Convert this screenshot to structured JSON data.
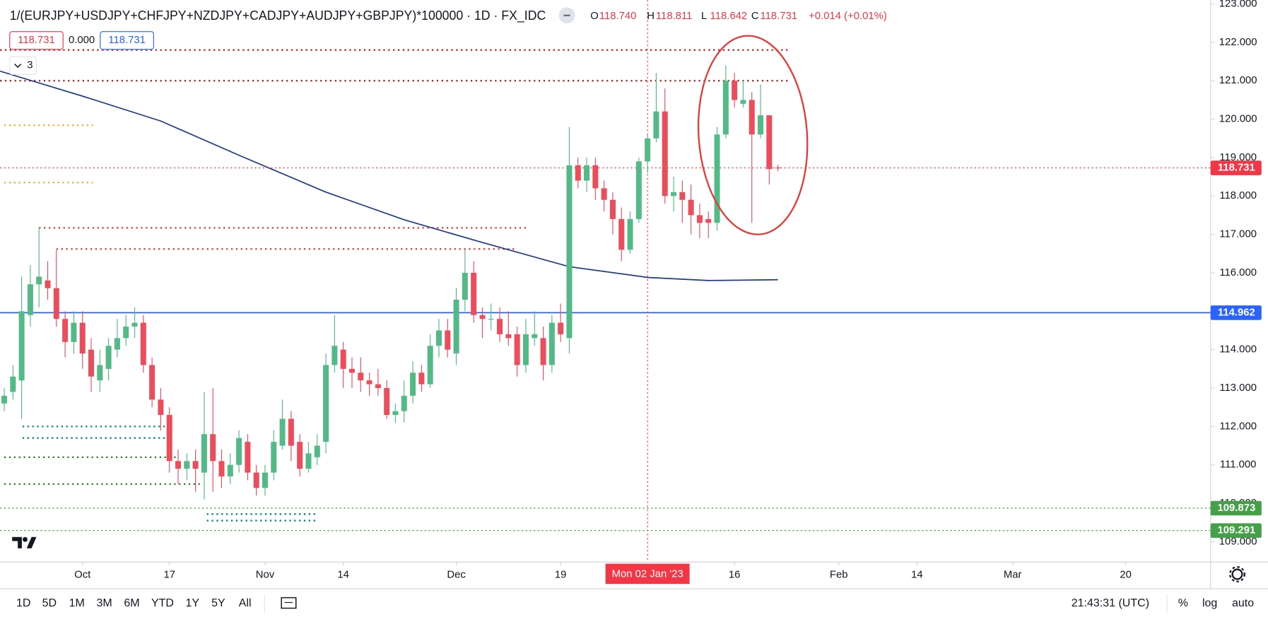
{
  "header": {
    "chips": [
      "118.731",
      "0.000",
      "118.731"
    ],
    "collapse": "3",
    "ohlc": [
      {
        "key": "O",
        "value": "118.740"
      },
      {
        "key": "H",
        "value": "118.811"
      },
      {
        "key": "L",
        "value": "118.642"
      },
      {
        "key": "C",
        "value": "118.731"
      }
    ],
    "change": "+0.014 (+0.01%)"
  },
  "chart_data": {
    "type": "candlestick",
    "title": "1/(EURJPY+USDJPY+CHFJPY+NZDJPY+CADJPY+AUDJPY+GBPJPY)*100000 · 1D · FX_IDC",
    "colors": {
      "up": "#53b987",
      "down": "#eb4d5c"
    },
    "xlim": [
      -0.49,
      138.77
    ],
    "ylim": [
      108.47,
      123.1
    ],
    "xticks": [
      {
        "value": 9,
        "label": "Oct"
      },
      {
        "value": 19,
        "label": "17"
      },
      {
        "value": 30,
        "label": "Nov"
      },
      {
        "value": 39,
        "label": "14"
      },
      {
        "value": 52,
        "label": "Dec"
      },
      {
        "value": 64,
        "label": "19"
      },
      {
        "value": 84,
        "label": "16"
      },
      {
        "value": 96,
        "label": "Feb"
      },
      {
        "value": 105,
        "label": "14"
      },
      {
        "value": 116,
        "label": "Mar"
      },
      {
        "value": 129,
        "label": "20"
      }
    ],
    "yticks": [
      {
        "value": 109,
        "label": "109.000"
      },
      {
        "value": 110,
        "label": "110.000"
      },
      {
        "value": 111,
        "label": "111.000"
      },
      {
        "value": 112,
        "label": "112.000"
      },
      {
        "value": 113,
        "label": "113.000"
      },
      {
        "value": 114,
        "label": "114.000"
      },
      {
        "value": 115,
        "label": "115.000"
      },
      {
        "value": 116,
        "label": "116.000"
      },
      {
        "value": 117,
        "label": "117.000"
      },
      {
        "value": 118,
        "label": "118.000"
      },
      {
        "value": 119,
        "label": "119.000"
      },
      {
        "value": 120,
        "label": "120.000"
      },
      {
        "value": 121,
        "label": "121.000"
      },
      {
        "value": 122,
        "label": "122.000"
      },
      {
        "value": 123,
        "label": "123.000"
      }
    ],
    "x": [
      0,
      1,
      2,
      3,
      4,
      5,
      6,
      7,
      8,
      9,
      10,
      11,
      12,
      13,
      14,
      15,
      16,
      17,
      18,
      19,
      20,
      21,
      22,
      23,
      24,
      25,
      26,
      27,
      28,
      29,
      30,
      31,
      32,
      33,
      34,
      35,
      36,
      37,
      38,
      39,
      40,
      41,
      42,
      43,
      44,
      45,
      46,
      47,
      48,
      49,
      50,
      51,
      52,
      53,
      54,
      55,
      56,
      57,
      58,
      59,
      60,
      61,
      62,
      63,
      64,
      65,
      66,
      67,
      68,
      69,
      70,
      71,
      72,
      73,
      74,
      75,
      76,
      77,
      78,
      79,
      80,
      81,
      82,
      83,
      84,
      85,
      86,
      87,
      88,
      89
    ],
    "open": [
      112.6,
      112.9,
      113.2,
      114.9,
      115.7,
      115.8,
      115.6,
      114.8,
      114.2,
      114.7,
      114.0,
      113.2,
      113.5,
      114.0,
      114.3,
      114.6,
      114.7,
      113.6,
      112.7,
      112.3,
      111.1,
      110.9,
      111.1,
      110.8,
      111.8,
      111.1,
      110.7,
      111.0,
      111.6,
      110.8,
      110.4,
      110.8,
      111.5,
      112.2,
      111.6,
      110.9,
      111.2,
      111.6,
      113.6,
      114.0,
      113.5,
      113.4,
      113.2,
      113.1,
      113.0,
      112.3,
      112.4,
      112.8,
      113.4,
      113.1,
      114.1,
      114.5,
      113.9,
      115.3,
      116.0,
      114.9,
      114.8,
      114.8,
      114.4,
      114.4,
      113.6,
      114.3,
      114.3,
      113.6,
      114.7,
      114.3,
      118.8,
      118.4,
      118.8,
      118.2,
      117.9,
      117.4,
      116.6,
      117.4,
      118.9,
      119.5,
      120.2,
      118.0,
      118.1,
      117.9,
      117.5,
      117.4,
      117.3,
      119.6,
      121.0,
      120.4,
      120.5,
      119.6,
      120.1,
      118.74
    ],
    "high": [
      113.0,
      113.6,
      115.9,
      116.2,
      117.2,
      116.3,
      116.6,
      115.0,
      115.0,
      115.0,
      114.3,
      114.0,
      114.3,
      114.8,
      114.9,
      115.1,
      114.9,
      113.8,
      113.0,
      112.5,
      111.4,
      111.3,
      111.4,
      112.9,
      113.0,
      111.4,
      111.3,
      111.9,
      111.8,
      111.0,
      111.0,
      111.9,
      112.7,
      112.4,
      111.8,
      111.6,
      111.8,
      113.9,
      114.9,
      114.2,
      113.8,
      113.8,
      113.4,
      113.5,
      113.2,
      112.6,
      113.2,
      113.7,
      113.6,
      114.4,
      114.8,
      114.8,
      115.6,
      116.6,
      116.3,
      115.1,
      115.2,
      115.1,
      115.0,
      114.6,
      114.8,
      115.0,
      114.6,
      114.9,
      115.2,
      119.8,
      119.0,
      119.0,
      119.0,
      118.4,
      118.1,
      117.7,
      117.6,
      119.0,
      119.6,
      121.2,
      120.8,
      118.5,
      118.4,
      118.3,
      117.8,
      117.6,
      119.8,
      121.4,
      121.2,
      121.0,
      120.7,
      120.9,
      120.1,
      118.811
    ],
    "low": [
      112.4,
      112.7,
      112.2,
      114.6,
      115.1,
      115.3,
      114.6,
      113.8,
      113.9,
      113.5,
      112.9,
      112.9,
      113.2,
      113.8,
      114.1,
      114.3,
      113.4,
      112.5,
      111.9,
      110.8,
      110.5,
      110.6,
      110.3,
      110.1,
      110.3,
      110.4,
      110.5,
      110.8,
      110.6,
      110.2,
      110.2,
      110.6,
      111.4,
      111.1,
      110.7,
      110.8,
      111.0,
      111.3,
      113.4,
      113.0,
      113.0,
      112.9,
      112.8,
      112.8,
      112.2,
      112.1,
      112.1,
      112.6,
      112.9,
      113.0,
      113.8,
      113.8,
      113.6,
      115.0,
      114.7,
      114.3,
      114.5,
      114.2,
      114.1,
      113.3,
      113.4,
      114.1,
      113.2,
      113.4,
      114.2,
      113.9,
      118.2,
      118.1,
      117.9,
      117.6,
      117.0,
      116.3,
      116.5,
      117.3,
      118.6,
      119.4,
      117.8,
      117.6,
      117.3,
      117.0,
      116.9,
      116.9,
      117.1,
      119.5,
      120.3,
      120.3,
      117.3,
      119.5,
      118.3,
      118.642
    ],
    "close": [
      112.8,
      113.3,
      115.0,
      115.7,
      115.9,
      115.6,
      114.8,
      114.2,
      114.7,
      113.9,
      113.3,
      113.6,
      114.1,
      114.3,
      114.6,
      114.7,
      113.6,
      112.7,
      112.3,
      111.1,
      110.9,
      111.1,
      110.9,
      111.8,
      111.1,
      110.7,
      111.0,
      111.7,
      110.8,
      110.4,
      110.8,
      111.6,
      112.2,
      111.5,
      110.9,
      111.3,
      111.5,
      113.6,
      114.1,
      113.5,
      113.4,
      113.2,
      113.1,
      113.0,
      112.3,
      112.4,
      112.8,
      113.4,
      113.1,
      114.1,
      114.5,
      114.0,
      115.3,
      116.0,
      114.9,
      114.8,
      114.8,
      114.4,
      114.3,
      113.6,
      114.4,
      114.4,
      113.6,
      114.7,
      114.4,
      118.8,
      118.4,
      118.8,
      118.2,
      117.9,
      117.4,
      116.6,
      117.4,
      118.9,
      119.5,
      120.2,
      118.0,
      118.1,
      117.9,
      117.5,
      117.3,
      117.3,
      119.6,
      121.0,
      120.5,
      120.5,
      119.6,
      120.1,
      118.7,
      118.731
    ],
    "ma": {
      "color": "#1e3a8a",
      "x": [
        -0.49,
        9,
        18,
        27,
        37,
        46,
        55,
        65,
        74,
        81,
        89
      ],
      "values": [
        121.25,
        120.6,
        119.95,
        119.06,
        118.1,
        117.38,
        116.79,
        116.16,
        115.88,
        115.8,
        115.82
      ]
    },
    "price_lines": [
      {
        "value": 118.731,
        "color": "#f23645",
        "style": "dotted"
      },
      {
        "value": 114.962,
        "color": "#2962ff",
        "style": "solid"
      },
      {
        "value": 109.873,
        "color": "#43a047",
        "style": "dotted"
      },
      {
        "value": 109.291,
        "color": "#43a047",
        "style": "dotted"
      }
    ],
    "levels": [
      {
        "value": 121.8,
        "color": "#b71c1c",
        "from": -0.49,
        "to": 90.2
      },
      {
        "value": 121.0,
        "color": "#b71c1c",
        "from": -0.49,
        "to": 90.2
      },
      {
        "value": 117.17,
        "color": "#e53935",
        "from": 4,
        "to": 60
      },
      {
        "value": 116.62,
        "color": "#e53935",
        "from": 6,
        "to": 59
      },
      {
        "value": 119.84,
        "color": "#f9a825",
        "from": 0,
        "to": 10.2
      },
      {
        "value": 118.35,
        "color": "#f9a825",
        "from": 0,
        "to": 10.2
      },
      {
        "value": 112.0,
        "color": "#00897b",
        "from": 2.1,
        "to": 18.6
      },
      {
        "value": 111.7,
        "color": "#00897b",
        "from": 2.1,
        "to": 18.6
      },
      {
        "value": 111.2,
        "color": "#2e7d32",
        "from": 0,
        "to": 20
      },
      {
        "value": 110.5,
        "color": "#2e7d32",
        "from": 0,
        "to": 22.8
      },
      {
        "value": 109.72,
        "color": "#00897b",
        "from": 23.3,
        "to": 35.8
      },
      {
        "value": 109.55,
        "color": "#00897b",
        "from": 23.3,
        "to": 35.8
      }
    ],
    "crosshair": {
      "x": 74,
      "label": "Mon 02 Jan '23",
      "color": "#f23645"
    }
  },
  "toolbar": {
    "ranges": [
      "1D",
      "5D",
      "1M",
      "3M",
      "6M",
      "YTD",
      "1Y",
      "5Y",
      "All"
    ],
    "time": "21:43:31 (UTC)",
    "options": [
      "%",
      "log",
      "auto"
    ]
  }
}
